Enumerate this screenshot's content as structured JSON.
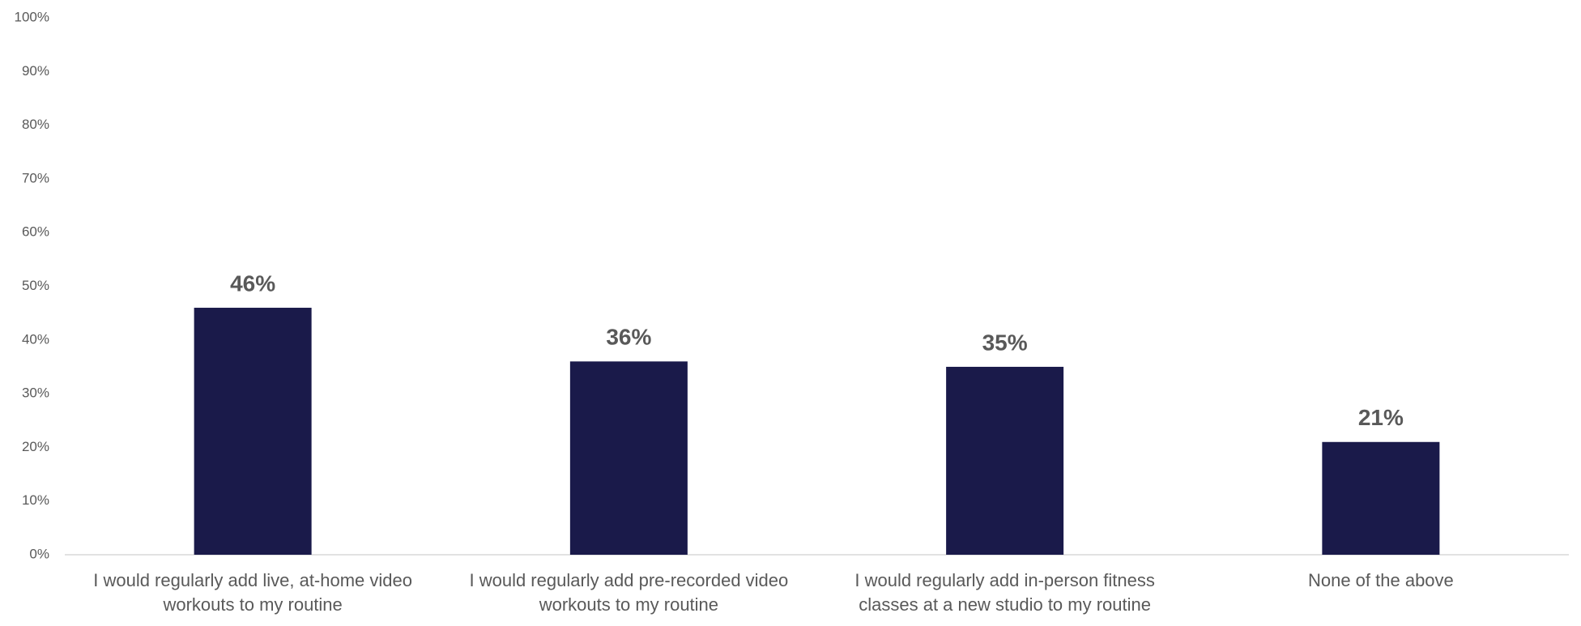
{
  "chart_data": {
    "type": "bar",
    "categories": [
      "I would regularly add live, at-home video workouts to my routine",
      "I would regularly add pre-recorded video workouts to my routine",
      "I would regularly add in-person fitness classes at a new studio to my routine",
      "None of the above"
    ],
    "values": [
      46,
      36,
      35,
      21
    ],
    "value_labels": [
      "46%",
      "36%",
      "35%",
      "21%"
    ],
    "color": "#1a1a4a",
    "ylim": [
      0,
      100
    ],
    "yticks": [
      {
        "value": 0,
        "label": "0%"
      },
      {
        "value": 10,
        "label": "10%"
      },
      {
        "value": 20,
        "label": "20%"
      },
      {
        "value": 30,
        "label": "30%"
      },
      {
        "value": 40,
        "label": "40%"
      },
      {
        "value": 50,
        "label": "50%"
      },
      {
        "value": 60,
        "label": "60%"
      },
      {
        "value": 70,
        "label": "70%"
      },
      {
        "value": 80,
        "label": "80%"
      },
      {
        "value": 90,
        "label": "90%"
      },
      {
        "value": 100,
        "label": "100%"
      }
    ],
    "grid": false
  }
}
